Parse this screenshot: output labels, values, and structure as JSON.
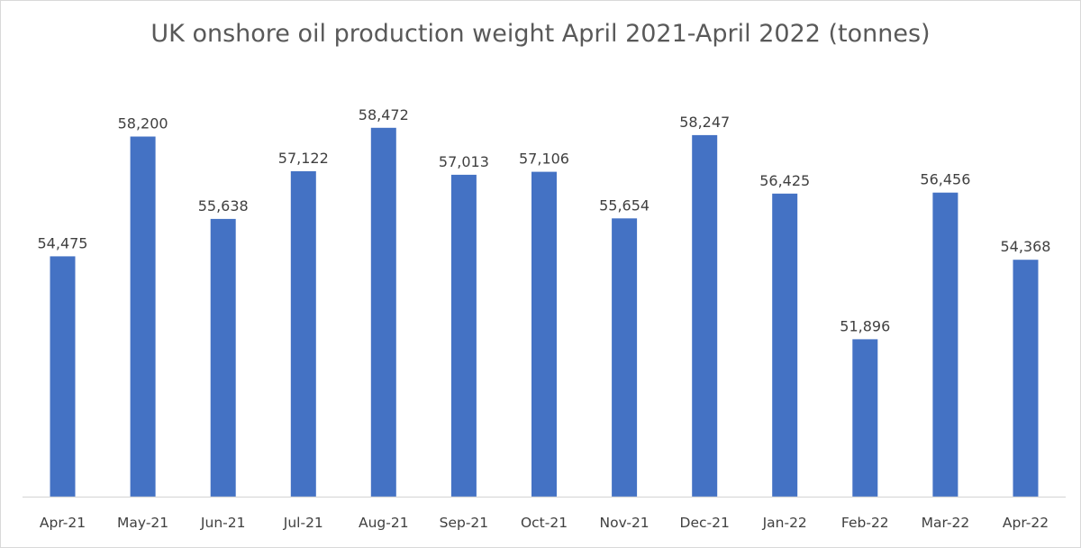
{
  "chart_data": {
    "type": "bar",
    "title": "UK onshore oil production weight April 2021-April 2022 (tonnes)",
    "xlabel": "",
    "ylabel": "",
    "categories": [
      "Apr-21",
      "May-21",
      "Jun-21",
      "Jul-21",
      "Aug-21",
      "Sep-21",
      "Oct-21",
      "Nov-21",
      "Dec-21",
      "Jan-22",
      "Feb-22",
      "Mar-22",
      "Apr-22"
    ],
    "values": [
      54475,
      58200,
      55638,
      57122,
      58472,
      57013,
      57106,
      55654,
      58247,
      56425,
      51896,
      56456,
      54368
    ],
    "value_labels": [
      "54,475",
      "58,200",
      "55,638",
      "57,122",
      "58,472",
      "57,013",
      "57,106",
      "55,654",
      "58,247",
      "56,425",
      "51,896",
      "56,456",
      "54,368"
    ],
    "ylim": [
      47000,
      59000
    ],
    "grid": false,
    "legend": "none",
    "bar_color": "#4472c4",
    "axis_color": "#d9d9d9"
  }
}
